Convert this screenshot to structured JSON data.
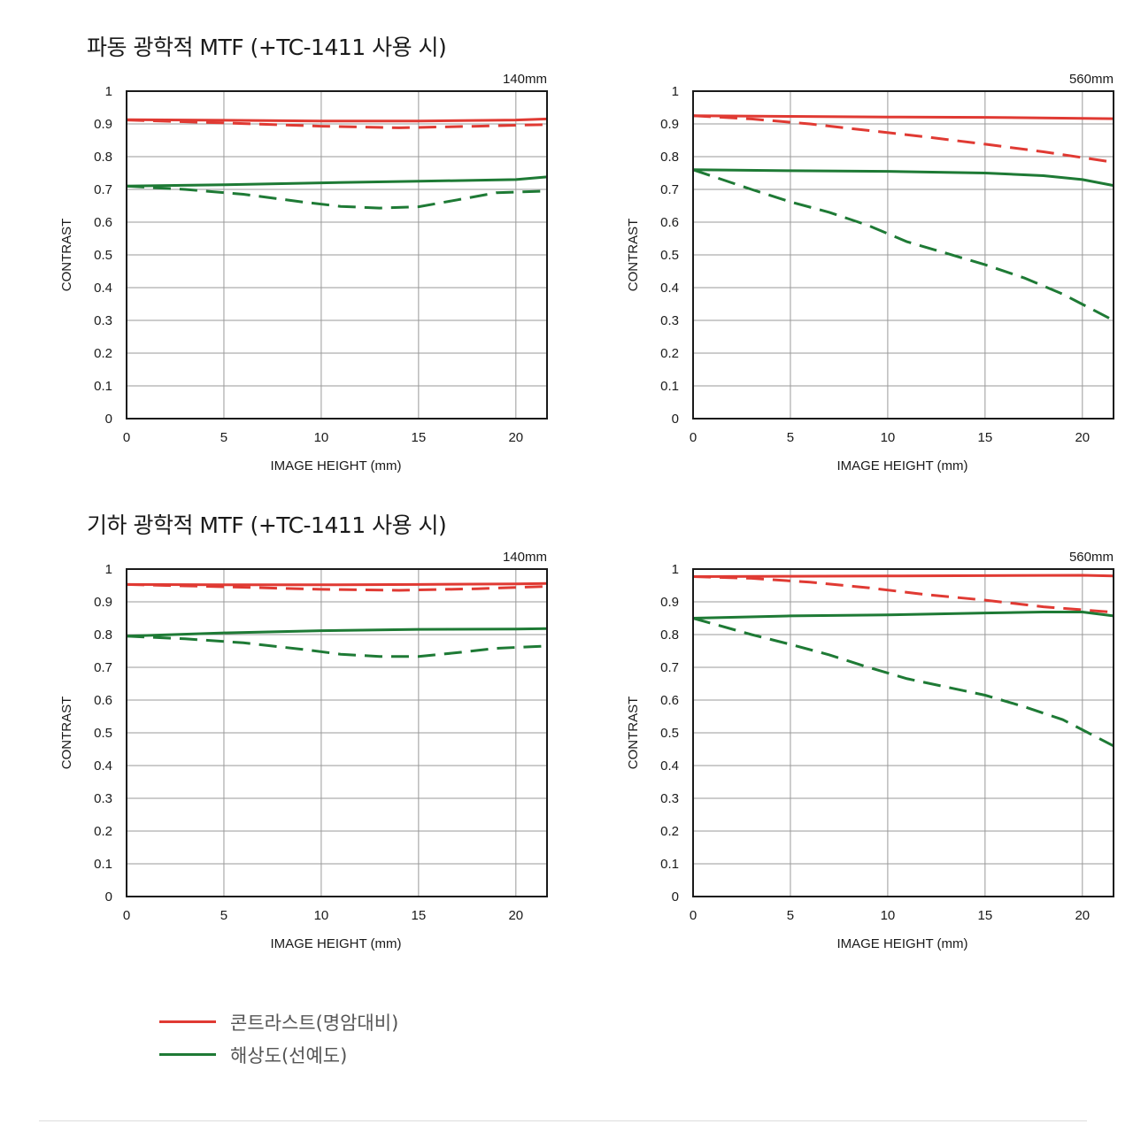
{
  "sections": [
    {
      "title": "파동 광학적 MTF (+TC-1411 사용 시)"
    },
    {
      "title": "기하 광학적 MTF (+TC-1411 사용 시)"
    }
  ],
  "legend": {
    "contrast": {
      "label": "콘트라스트(명암대비)",
      "color": "#e03a33"
    },
    "resolution": {
      "label": "해상도(선예도)",
      "color": "#1e7a35"
    }
  },
  "chart_data": [
    {
      "type": "line",
      "focal_length": "140mm",
      "xlabel": "IMAGE HEIGHT (mm)",
      "ylabel": "CONTRAST",
      "xlim": [
        0,
        21.6
      ],
      "ylim": [
        0,
        1
      ],
      "xticks": [
        "0",
        "5",
        "10",
        "15",
        "20"
      ],
      "yticks": [
        "0",
        "0.1",
        "0.2",
        "0.3",
        "0.4",
        "0.5",
        "0.6",
        "0.7",
        "0.8",
        "0.9",
        "1"
      ],
      "grid": true,
      "series": [
        {
          "line": "solid",
          "color_key": "contrast",
          "x": [
            0,
            5,
            10,
            15,
            20,
            21.6
          ],
          "y": [
            0.913,
            0.911,
            0.909,
            0.909,
            0.912,
            0.915
          ]
        },
        {
          "line": "dashed",
          "color_key": "contrast",
          "x": [
            0,
            5,
            10,
            14,
            18,
            21.6
          ],
          "y": [
            0.912,
            0.903,
            0.893,
            0.888,
            0.893,
            0.898
          ]
        },
        {
          "line": "solid",
          "color_key": "resolution",
          "x": [
            0,
            5,
            10,
            15,
            20,
            21.6
          ],
          "y": [
            0.71,
            0.714,
            0.72,
            0.725,
            0.73,
            0.738
          ]
        },
        {
          "line": "dashed",
          "color_key": "resolution",
          "x": [
            0,
            3,
            6,
            9,
            11,
            13,
            15,
            17,
            19,
            21.6
          ],
          "y": [
            0.71,
            0.7,
            0.685,
            0.662,
            0.648,
            0.643,
            0.647,
            0.668,
            0.69,
            0.695
          ]
        }
      ]
    },
    {
      "type": "line",
      "focal_length": "560mm",
      "xlabel": "IMAGE HEIGHT (mm)",
      "ylabel": "CONTRAST",
      "xlim": [
        0,
        21.6
      ],
      "ylim": [
        0,
        1
      ],
      "xticks": [
        "0",
        "5",
        "10",
        "15",
        "20"
      ],
      "yticks": [
        "0",
        "0.1",
        "0.2",
        "0.3",
        "0.4",
        "0.5",
        "0.6",
        "0.7",
        "0.8",
        "0.9",
        "1"
      ],
      "grid": true,
      "series": [
        {
          "line": "solid",
          "color_key": "contrast",
          "x": [
            0,
            5,
            10,
            15,
            20,
            21.6
          ],
          "y": [
            0.925,
            0.923,
            0.921,
            0.92,
            0.917,
            0.916
          ]
        },
        {
          "line": "dashed",
          "color_key": "contrast",
          "x": [
            0,
            3,
            6,
            9,
            12,
            15,
            18,
            21.6
          ],
          "y": [
            0.925,
            0.915,
            0.9,
            0.88,
            0.86,
            0.838,
            0.815,
            0.783
          ]
        },
        {
          "line": "solid",
          "color_key": "resolution",
          "x": [
            0,
            5,
            10,
            15,
            18,
            20,
            21.6
          ],
          "y": [
            0.76,
            0.757,
            0.755,
            0.75,
            0.742,
            0.73,
            0.712
          ]
        },
        {
          "line": "dashed",
          "color_key": "resolution",
          "x": [
            0,
            3,
            5,
            7,
            9,
            11,
            13,
            15,
            17,
            19,
            21.6
          ],
          "y": [
            0.76,
            0.7,
            0.662,
            0.63,
            0.59,
            0.54,
            0.505,
            0.47,
            0.43,
            0.38,
            0.3
          ]
        }
      ]
    },
    {
      "type": "line",
      "focal_length": "140mm",
      "xlabel": "IMAGE HEIGHT (mm)",
      "ylabel": "CONTRAST",
      "xlim": [
        0,
        21.6
      ],
      "ylim": [
        0,
        1
      ],
      "xticks": [
        "0",
        "5",
        "10",
        "15",
        "20"
      ],
      "yticks": [
        "0",
        "0.1",
        "0.2",
        "0.3",
        "0.4",
        "0.5",
        "0.6",
        "0.7",
        "0.8",
        "0.9",
        "1"
      ],
      "grid": true,
      "series": [
        {
          "line": "solid",
          "color_key": "contrast",
          "x": [
            0,
            5,
            10,
            15,
            20,
            21.6
          ],
          "y": [
            0.953,
            0.952,
            0.952,
            0.953,
            0.955,
            0.956
          ]
        },
        {
          "line": "dashed",
          "color_key": "contrast",
          "x": [
            0,
            5,
            10,
            14,
            18,
            21.6
          ],
          "y": [
            0.953,
            0.946,
            0.938,
            0.935,
            0.94,
            0.947
          ]
        },
        {
          "line": "solid",
          "color_key": "resolution",
          "x": [
            0,
            5,
            10,
            15,
            20,
            21.6
          ],
          "y": [
            0.795,
            0.805,
            0.812,
            0.816,
            0.817,
            0.818
          ]
        },
        {
          "line": "dashed",
          "color_key": "resolution",
          "x": [
            0,
            3,
            6,
            9,
            11,
            13,
            15,
            17,
            19,
            21.6
          ],
          "y": [
            0.795,
            0.787,
            0.775,
            0.755,
            0.74,
            0.733,
            0.733,
            0.745,
            0.758,
            0.765
          ]
        }
      ]
    },
    {
      "type": "line",
      "focal_length": "560mm",
      "xlabel": "IMAGE HEIGHT (mm)",
      "ylabel": "CONTRAST",
      "xlim": [
        0,
        21.6
      ],
      "ylim": [
        0,
        1
      ],
      "xticks": [
        "0",
        "5",
        "10",
        "15",
        "20"
      ],
      "yticks": [
        "0",
        "0.1",
        "0.2",
        "0.3",
        "0.4",
        "0.5",
        "0.6",
        "0.7",
        "0.8",
        "0.9",
        "1"
      ],
      "grid": true,
      "series": [
        {
          "line": "solid",
          "color_key": "contrast",
          "x": [
            0,
            5,
            10,
            15,
            20,
            21.6
          ],
          "y": [
            0.977,
            0.978,
            0.979,
            0.98,
            0.981,
            0.979
          ]
        },
        {
          "line": "dashed",
          "color_key": "contrast",
          "x": [
            0,
            3,
            6,
            9,
            12,
            15,
            18,
            21.6
          ],
          "y": [
            0.977,
            0.972,
            0.96,
            0.943,
            0.922,
            0.905,
            0.885,
            0.868
          ]
        },
        {
          "line": "solid",
          "color_key": "resolution",
          "x": [
            0,
            5,
            10,
            15,
            18,
            20,
            21.6
          ],
          "y": [
            0.85,
            0.857,
            0.86,
            0.866,
            0.869,
            0.869,
            0.857
          ]
        },
        {
          "line": "dashed",
          "color_key": "resolution",
          "x": [
            0,
            3,
            5,
            7,
            9,
            11,
            13,
            15,
            17,
            19,
            21.6
          ],
          "y": [
            0.85,
            0.8,
            0.77,
            0.738,
            0.7,
            0.665,
            0.64,
            0.615,
            0.58,
            0.54,
            0.46
          ]
        }
      ]
    }
  ]
}
